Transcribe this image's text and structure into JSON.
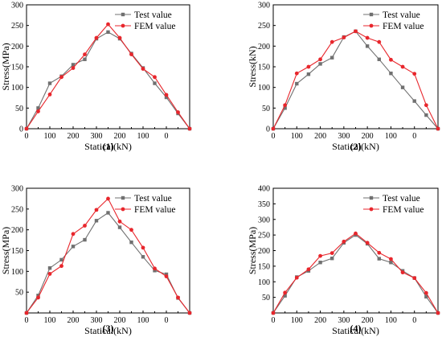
{
  "colors": {
    "test": "#707070",
    "fem": "#e8262c",
    "axis": "#000000"
  },
  "chart_data": [
    {
      "type": "line",
      "caption": "(1)",
      "xlabel": "Statical(kN)",
      "ylabel": "Stress(MPa)",
      "x_ticks": [
        "0",
        "100",
        "200",
        "300",
        "200",
        "100",
        "0"
      ],
      "y_ticks": [
        0,
        50,
        100,
        150,
        200,
        250,
        300
      ],
      "ylim": [
        0,
        300
      ],
      "x": [
        0,
        50,
        100,
        150,
        200,
        250,
        300,
        350,
        300,
        250,
        200,
        150,
        100,
        50,
        0
      ],
      "x_display": [
        "0",
        "50",
        "100",
        "150",
        "200",
        "250",
        "300",
        "350",
        "300",
        "250",
        "200",
        "150",
        "100",
        "50",
        "0"
      ],
      "legend": [
        "Test value",
        "FEM value"
      ],
      "legend_position": "top-right",
      "series": [
        {
          "name": "Test value",
          "values": [
            0,
            50,
            110,
            127,
            155,
            168,
            218,
            234,
            218,
            182,
            147,
            110,
            76,
            37,
            0
          ]
        },
        {
          "name": "FEM value",
          "values": [
            0,
            42,
            83,
            125,
            147,
            180,
            220,
            253,
            220,
            180,
            145,
            125,
            82,
            40,
            0
          ]
        }
      ]
    },
    {
      "type": "line",
      "caption": "(2)",
      "xlabel": "Statical(kN)",
      "ylabel": "Stress(kN)",
      "x_ticks": [
        "0",
        "100",
        "200",
        "300",
        "200",
        "100",
        "0"
      ],
      "y_ticks": [
        0,
        50,
        100,
        150,
        200,
        250,
        300
      ],
      "ylim": [
        0,
        300
      ],
      "x": [
        0,
        50,
        100,
        150,
        200,
        250,
        300,
        350,
        300,
        250,
        200,
        150,
        100,
        50,
        0
      ],
      "legend": [
        "Test value",
        "FEM value"
      ],
      "legend_position": "top-right",
      "series": [
        {
          "name": "Test value",
          "values": [
            0,
            50,
            109,
            132,
            157,
            172,
            222,
            236,
            200,
            168,
            134,
            100,
            67,
            33,
            0
          ]
        },
        {
          "name": "FEM value",
          "values": [
            0,
            57,
            134,
            150,
            168,
            210,
            221,
            236,
            220,
            210,
            167,
            150,
            133,
            57,
            0
          ]
        }
      ]
    },
    {
      "type": "line",
      "caption": "(3)",
      "xlabel": "Statical(kN)",
      "ylabel": "Stress(MPa)",
      "x_ticks": [
        "0",
        "100",
        "200",
        "300",
        "200",
        "100",
        "0"
      ],
      "y_ticks": [
        50,
        100,
        150,
        200,
        250,
        300
      ],
      "ylim": [
        0,
        300
      ],
      "x": [
        0,
        50,
        100,
        150,
        200,
        250,
        300,
        350,
        300,
        250,
        200,
        150,
        100,
        50,
        0
      ],
      "legend": [
        "Test value",
        "FEM value"
      ],
      "legend_position": "top-right",
      "series": [
        {
          "name": "Test value",
          "values": [
            0,
            42,
            108,
            128,
            160,
            176,
            222,
            241,
            206,
            170,
            135,
            102,
            93,
            36,
            0
          ]
        },
        {
          "name": "FEM value",
          "values": [
            0,
            37,
            94,
            113,
            190,
            210,
            248,
            275,
            220,
            200,
            157,
            107,
            88,
            37,
            0
          ]
        }
      ]
    },
    {
      "type": "line",
      "caption": "(4)",
      "xlabel": "Statical(kN)",
      "ylabel": "Stress(MPa)",
      "x_ticks": [
        "0",
        "100",
        "200",
        "300",
        "200",
        "100",
        "0"
      ],
      "y_ticks": [
        50,
        100,
        150,
        200,
        250,
        300,
        350,
        400
      ],
      "ylim": [
        0,
        400
      ],
      "x": [
        0,
        50,
        100,
        150,
        200,
        250,
        300,
        350,
        300,
        250,
        200,
        150,
        100,
        50,
        0
      ],
      "legend": [
        "Test value",
        "FEM value"
      ],
      "legend_position": "top-right",
      "series": [
        {
          "name": "Test value",
          "values": [
            0,
            55,
            115,
            135,
            162,
            175,
            225,
            250,
            222,
            174,
            162,
            135,
            112,
            52,
            0
          ]
        },
        {
          "name": "FEM value",
          "values": [
            0,
            65,
            113,
            140,
            183,
            192,
            229,
            255,
            225,
            193,
            173,
            130,
            112,
            64,
            0
          ]
        }
      ]
    }
  ]
}
